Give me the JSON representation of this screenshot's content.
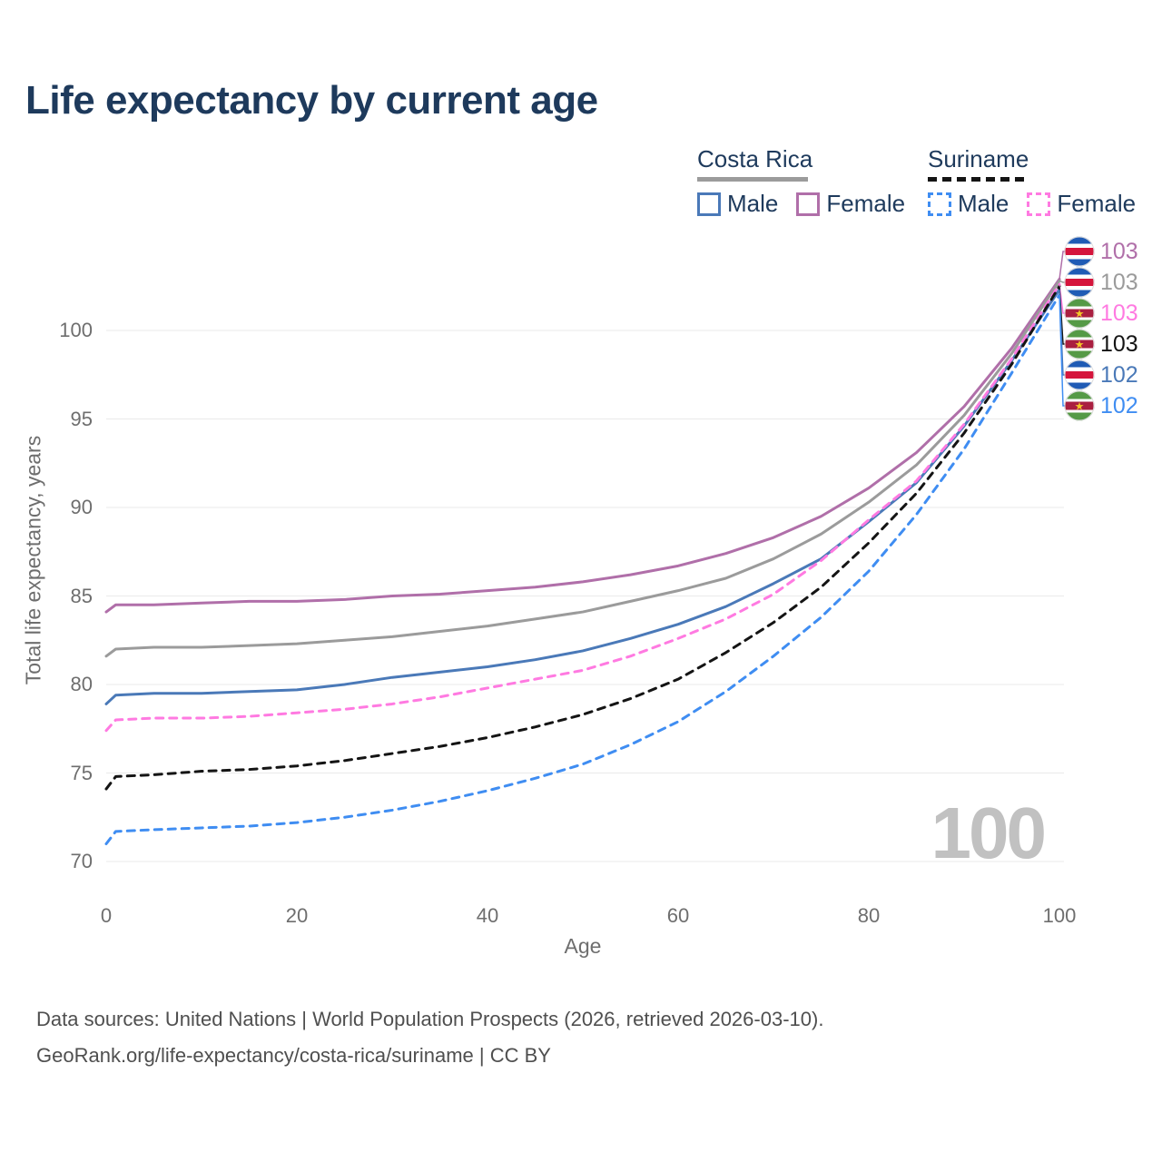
{
  "title": "Life expectancy by current age",
  "legend": {
    "groups": [
      {
        "label": "Costa Rica",
        "line_style": "solid",
        "line_color": "#9b9b9b",
        "items": [
          {
            "label": "Male",
            "color": "#4a79b8",
            "dashed": false
          },
          {
            "label": "Female",
            "color": "#b06fa9",
            "dashed": false
          }
        ]
      },
      {
        "label": "Suriname",
        "line_style": "dashed",
        "line_color": "#141414",
        "items": [
          {
            "label": "Male",
            "color": "#3f8df2",
            "dashed": true
          },
          {
            "label": "Female",
            "color": "#ff7ae1",
            "dashed": true
          }
        ]
      }
    ]
  },
  "chart_data": {
    "type": "line",
    "title": "Life expectancy by current age",
    "xlabel": "Age",
    "ylabel": "Total life expectancy, years",
    "x_ticks": [
      0,
      20,
      40,
      60,
      80,
      100
    ],
    "y_ticks": [
      70,
      75,
      80,
      85,
      90,
      95,
      100
    ],
    "xlim": [
      0,
      100
    ],
    "ylim": [
      70,
      103.5
    ],
    "grid": "horizontal",
    "legend_position": "top-right",
    "watermark": "100",
    "x": [
      0,
      1,
      5,
      10,
      15,
      20,
      25,
      30,
      35,
      40,
      45,
      50,
      55,
      60,
      65,
      70,
      75,
      80,
      85,
      90,
      95,
      100
    ],
    "series": [
      {
        "name": "Costa Rica Female",
        "country": "Costa Rica",
        "sex": "Female",
        "flag": "costa-rica-flag",
        "color": "#b06fa9",
        "dashed": false,
        "end_label": "103",
        "values": [
          84.1,
          84.5,
          84.5,
          84.6,
          84.7,
          84.7,
          84.8,
          85.0,
          85.1,
          85.3,
          85.5,
          85.8,
          86.2,
          86.7,
          87.4,
          88.3,
          89.5,
          91.1,
          93.1,
          95.7,
          99.0,
          102.9
        ]
      },
      {
        "name": "Costa Rica",
        "country": "Costa Rica",
        "sex": "Both",
        "flag": "costa-rica-flag",
        "color": "#9b9b9b",
        "dashed": false,
        "end_label": "103",
        "values": [
          81.6,
          82.0,
          82.1,
          82.1,
          82.2,
          82.3,
          82.5,
          82.7,
          83.0,
          83.3,
          83.7,
          84.1,
          84.7,
          85.3,
          86.0,
          87.1,
          88.5,
          90.3,
          92.4,
          95.2,
          98.7,
          102.8
        ]
      },
      {
        "name": "Suriname Female",
        "country": "Suriname",
        "sex": "Female",
        "flag": "suriname-flag",
        "color": "#ff7ae1",
        "dashed": true,
        "end_label": "103",
        "values": [
          77.4,
          78.0,
          78.1,
          78.1,
          78.2,
          78.4,
          78.6,
          78.9,
          79.3,
          79.8,
          80.3,
          80.8,
          81.6,
          82.6,
          83.7,
          85.1,
          87.0,
          89.3,
          91.5,
          94.7,
          98.4,
          102.6
        ]
      },
      {
        "name": "Suriname",
        "country": "Suriname",
        "sex": "Both",
        "flag": "suriname-flag",
        "color": "#141414",
        "dashed": true,
        "end_label": "103",
        "values": [
          74.1,
          74.8,
          74.9,
          75.1,
          75.2,
          75.4,
          75.7,
          76.1,
          76.5,
          77.0,
          77.6,
          78.3,
          79.2,
          80.3,
          81.8,
          83.5,
          85.5,
          88.0,
          90.8,
          94.2,
          98.1,
          102.5
        ]
      },
      {
        "name": "Costa Rica Male",
        "country": "Costa Rica",
        "sex": "Male",
        "flag": "costa-rica-flag",
        "color": "#4a79b8",
        "dashed": false,
        "end_label": "102",
        "values": [
          78.9,
          79.4,
          79.5,
          79.5,
          79.6,
          79.7,
          80.0,
          80.4,
          80.7,
          81.0,
          81.4,
          81.9,
          82.6,
          83.4,
          84.4,
          85.7,
          87.1,
          89.2,
          91.4,
          94.6,
          98.3,
          102.3
        ]
      },
      {
        "name": "Suriname Male",
        "country": "Suriname",
        "sex": "Male",
        "flag": "suriname-flag",
        "color": "#3f8df2",
        "dashed": true,
        "end_label": "102",
        "values": [
          71.0,
          71.7,
          71.8,
          71.9,
          72.0,
          72.2,
          72.5,
          72.9,
          73.4,
          74.0,
          74.7,
          75.5,
          76.6,
          77.9,
          79.6,
          81.6,
          83.8,
          86.4,
          89.6,
          93.3,
          97.6,
          102.0
        ]
      }
    ]
  },
  "footer": {
    "line1": "Data sources: United Nations | World Population Prospects (2026, retrieved 2026-03-10).",
    "line2": "GeoRank.org/life-expectancy/costa-rica/suriname | CC BY"
  }
}
